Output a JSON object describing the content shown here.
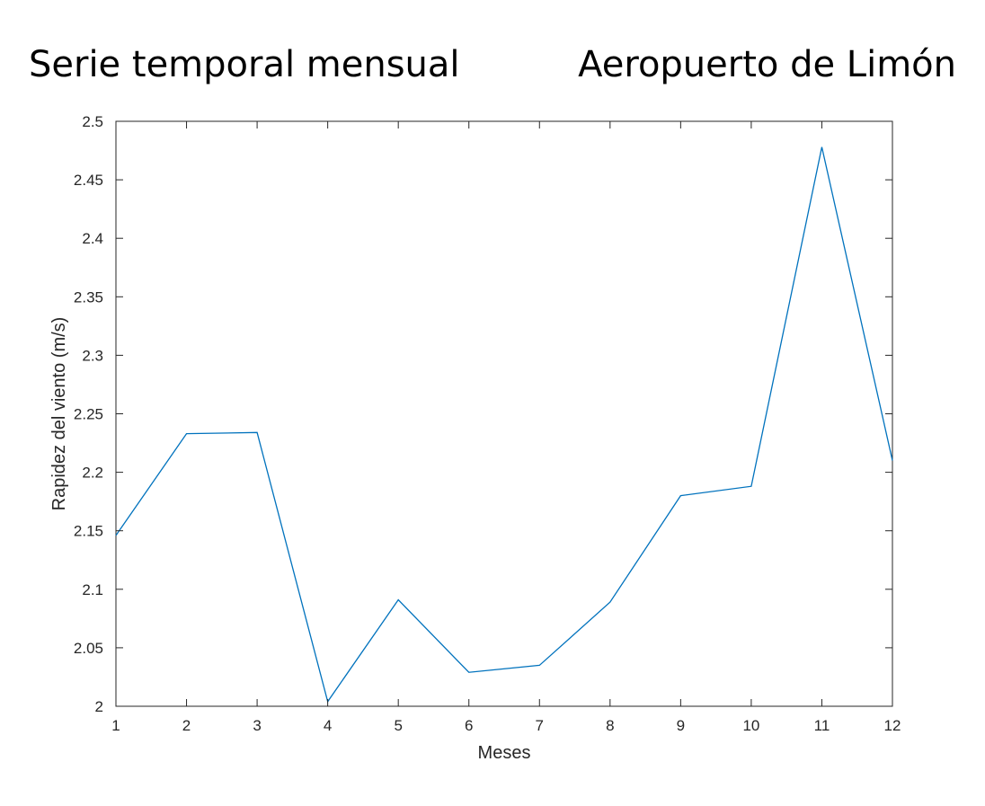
{
  "header": {
    "title_left": "Serie temporal mensual",
    "title_right": "Aeropuerto de Limón"
  },
  "chart_data": {
    "type": "line",
    "title": "",
    "xlabel": "Meses",
    "ylabel": "Rapidez del viento (m/s)",
    "x": [
      1,
      2,
      3,
      4,
      5,
      6,
      7,
      8,
      9,
      10,
      11,
      12
    ],
    "series": [
      {
        "values": [
          2.146,
          2.233,
          2.234,
          2.004,
          2.091,
          2.029,
          2.035,
          2.089,
          2.18,
          2.188,
          2.478,
          2.21
        ],
        "color": "#0072BD"
      }
    ],
    "xlim": [
      1,
      12
    ],
    "ylim": [
      2,
      2.5
    ],
    "xticks": [
      "1",
      "2",
      "3",
      "4",
      "5",
      "6",
      "7",
      "8",
      "9",
      "10",
      "11",
      "12"
    ],
    "yticks": [
      "2",
      "2.05",
      "2.1",
      "2.15",
      "2.2",
      "2.25",
      "2.3",
      "2.35",
      "2.4",
      "2.45",
      "2.5"
    ],
    "grid": false,
    "axis_color": "#262626"
  }
}
